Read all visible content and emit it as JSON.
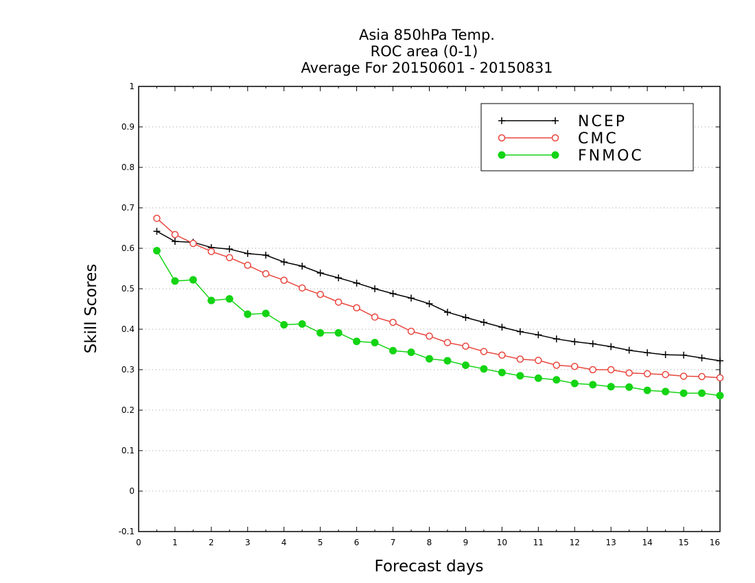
{
  "chart_data": {
    "type": "line",
    "title": [
      "Asia 850hPa Temp.",
      "ROC area (0-1)",
      "Average For 20150601 - 20150831"
    ],
    "xlabel": "Forecast days",
    "ylabel": "Skill Scores",
    "xlim": [
      0,
      16
    ],
    "ylim": [
      -0.1,
      1
    ],
    "x_ticks": [
      "0",
      "1",
      "2",
      "3",
      "4",
      "5",
      "6",
      "7",
      "8",
      "9",
      "10",
      "11",
      "12",
      "13",
      "14",
      "15",
      "16"
    ],
    "y_ticks": [
      "-0.1",
      "0",
      "0.1",
      "0.2",
      "0.3",
      "0.4",
      "0.5",
      "0.6",
      "0.7",
      "0.8",
      "0.9",
      "1"
    ],
    "grid": "horizontal-dotted",
    "legend_position": "top-right",
    "x": [
      0.5,
      1,
      1.5,
      2,
      2.5,
      3,
      3.5,
      4,
      4.5,
      5,
      5.5,
      6,
      6.5,
      7,
      7.5,
      8,
      8.5,
      9,
      9.5,
      10,
      10.5,
      11,
      11.5,
      12,
      12.5,
      13,
      13.5,
      14,
      14.5,
      15,
      15.5,
      16
    ],
    "series": [
      {
        "name": "NCEP",
        "color": "#000000",
        "marker": "plus",
        "values": [
          0.642,
          0.617,
          0.615,
          0.602,
          0.598,
          0.587,
          0.583,
          0.566,
          0.556,
          0.539,
          0.527,
          0.514,
          0.5,
          0.488,
          0.477,
          0.463,
          0.442,
          0.429,
          0.417,
          0.405,
          0.394,
          0.386,
          0.376,
          0.369,
          0.364,
          0.357,
          0.348,
          0.342,
          0.337,
          0.336,
          0.329,
          0.322
        ]
      },
      {
        "name": "CMC",
        "color": "#e8453c",
        "marker": "open-circle",
        "values": [
          0.674,
          0.634,
          0.612,
          0.592,
          0.577,
          0.558,
          0.537,
          0.521,
          0.502,
          0.486,
          0.467,
          0.453,
          0.43,
          0.417,
          0.395,
          0.383,
          0.367,
          0.358,
          0.345,
          0.336,
          0.326,
          0.323,
          0.311,
          0.308,
          0.3,
          0.3,
          0.292,
          0.29,
          0.288,
          0.284,
          0.283,
          0.28
        ]
      },
      {
        "name": "FNMOC",
        "color": "#14d414",
        "marker": "filled-circle",
        "values": [
          0.594,
          0.519,
          0.522,
          0.471,
          0.475,
          0.437,
          0.439,
          0.411,
          0.413,
          0.391,
          0.391,
          0.37,
          0.367,
          0.347,
          0.343,
          0.327,
          0.322,
          0.311,
          0.302,
          0.293,
          0.285,
          0.279,
          0.275,
          0.266,
          0.263,
          0.258,
          0.257,
          0.249,
          0.246,
          0.242,
          0.242,
          0.236
        ]
      }
    ]
  }
}
